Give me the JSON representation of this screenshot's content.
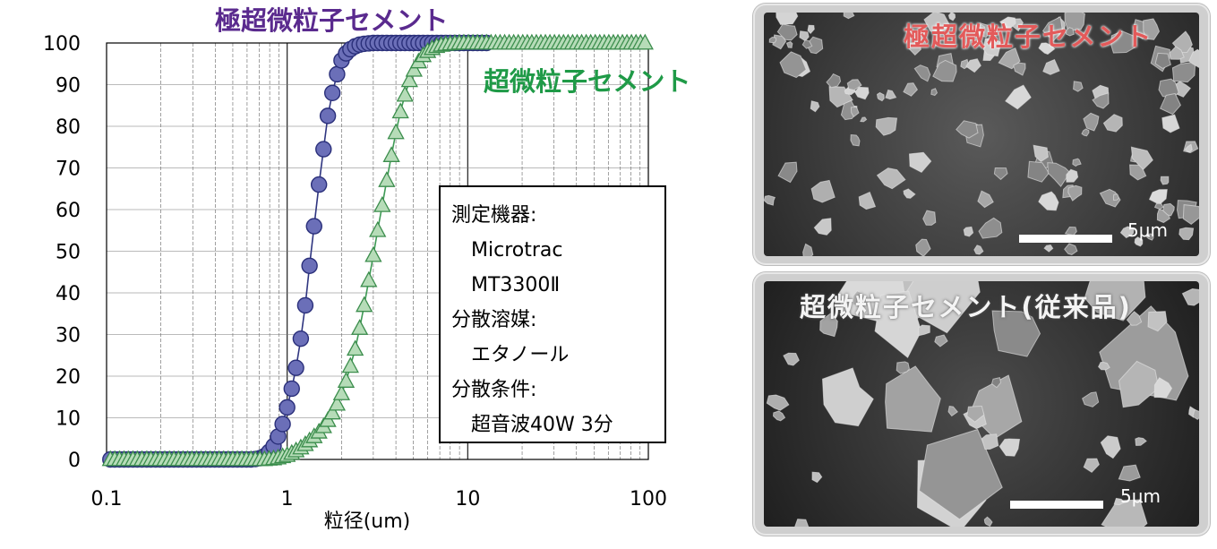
{
  "chart_data": {
    "type": "scatter",
    "xscale": "log",
    "xlim": [
      0.1,
      100
    ],
    "ylim": [
      0,
      100
    ],
    "xlabel": "粒径(um)",
    "ylabel": "",
    "grid": true,
    "x_ticks": [
      "0.1",
      "1",
      "10",
      "100"
    ],
    "y_ticks": [
      "0",
      "10",
      "20",
      "30",
      "40",
      "50",
      "60",
      "70",
      "80",
      "90",
      "100"
    ],
    "series": [
      {
        "name": "極超微粒子セメント",
        "marker": "circle",
        "color": "#6b6fb8",
        "x": [
          0.105,
          0.111,
          0.118,
          0.125,
          0.132,
          0.14,
          0.148,
          0.157,
          0.167,
          0.176,
          0.187,
          0.198,
          0.21,
          0.223,
          0.236,
          0.25,
          0.265,
          0.281,
          0.297,
          0.315,
          0.334,
          0.354,
          0.375,
          0.397,
          0.42,
          0.445,
          0.472,
          0.5,
          0.53,
          0.561,
          0.595,
          0.63,
          0.667,
          0.707,
          0.749,
          0.794,
          0.841,
          0.891,
          0.944,
          1.0,
          1.06,
          1.12,
          1.19,
          1.26,
          1.33,
          1.41,
          1.5,
          1.59,
          1.68,
          1.78,
          1.89,
          2.0,
          2.12,
          2.24,
          2.38,
          2.52,
          2.67,
          2.83,
          3.0,
          3.17,
          3.36,
          3.56,
          3.78,
          4.0,
          4.24,
          4.49,
          4.76,
          5.04,
          5.34,
          5.66,
          6.0,
          6.35,
          6.73,
          7.13,
          7.55,
          8.0,
          8.48,
          8.98,
          9.51,
          10.08,
          10.68,
          11.31,
          11.98,
          12.7
        ],
        "values": [
          0,
          0,
          0,
          0,
          0,
          0,
          0,
          0,
          0,
          0,
          0,
          0,
          0,
          0,
          0,
          0,
          0,
          0,
          0,
          0,
          0,
          0,
          0,
          0,
          0,
          0,
          0,
          0,
          0,
          0,
          0,
          0,
          0.1,
          0.3,
          0.8,
          1.8,
          3.2,
          5.5,
          8.5,
          12.5,
          17,
          22,
          29,
          37,
          46.5,
          56,
          66,
          74.5,
          82.5,
          88,
          92.5,
          95.8,
          97.5,
          98.5,
          99.2,
          99.6,
          99.8,
          99.9,
          100,
          100,
          100,
          100,
          100,
          100,
          100,
          100,
          100,
          100,
          100,
          100,
          100,
          100,
          100,
          100,
          100,
          100,
          100,
          100,
          100,
          100,
          100,
          100,
          100,
          100
        ]
      },
      {
        "name": "超微粒子セメント",
        "marker": "triangle",
        "color": "#b6dcb8",
        "x": [
          0.105,
          0.111,
          0.118,
          0.125,
          0.132,
          0.14,
          0.148,
          0.157,
          0.167,
          0.176,
          0.187,
          0.198,
          0.21,
          0.223,
          0.236,
          0.25,
          0.265,
          0.281,
          0.297,
          0.315,
          0.334,
          0.354,
          0.375,
          0.397,
          0.42,
          0.445,
          0.472,
          0.5,
          0.53,
          0.561,
          0.595,
          0.63,
          0.667,
          0.707,
          0.749,
          0.794,
          0.841,
          0.891,
          0.944,
          1.0,
          1.06,
          1.12,
          1.19,
          1.26,
          1.33,
          1.41,
          1.5,
          1.59,
          1.68,
          1.78,
          1.89,
          2.0,
          2.12,
          2.24,
          2.38,
          2.52,
          2.67,
          2.83,
          3.0,
          3.17,
          3.36,
          3.56,
          3.78,
          4.0,
          4.24,
          4.49,
          4.76,
          5.04,
          5.34,
          5.66,
          6.0,
          6.35,
          6.73,
          7.13,
          7.55,
          8.0,
          8.48,
          8.98,
          9.51,
          10.08,
          10.68,
          11.31,
          11.98,
          12.7,
          13.45,
          14.25,
          15.1,
          16.0,
          16.95,
          17.96,
          19.03,
          20.16,
          21.36,
          22.63,
          23.97,
          25.4,
          26.91,
          28.51,
          30.2,
          32.0,
          33.9,
          35.92,
          38.05,
          40.32,
          42.71,
          45.25,
          47.94,
          50.8,
          53.81,
          57.01,
          60.4,
          63.99,
          67.8,
          71.83,
          76.1,
          80.62,
          85.42,
          90.5,
          95.88
        ],
        "values": [
          0,
          0,
          0,
          0,
          0,
          0,
          0,
          0,
          0,
          0,
          0,
          0,
          0,
          0,
          0,
          0,
          0,
          0,
          0,
          0,
          0,
          0,
          0,
          0,
          0,
          0,
          0,
          0,
          0,
          0,
          0,
          0,
          0,
          0,
          0,
          0.1,
          0.2,
          0.4,
          0.7,
          1.0,
          1.5,
          2.1,
          2.8,
          3.6,
          4.5,
          5.5,
          6.6,
          7.9,
          9.4,
          11.2,
          13.3,
          15.8,
          18.8,
          22.4,
          26.5,
          31.5,
          37,
          43,
          49,
          55,
          61,
          67,
          73,
          78.5,
          83.5,
          87.5,
          91,
          93.5,
          95.5,
          97,
          98,
          98.7,
          99.2,
          99.5,
          99.7,
          99.8,
          99.9,
          100,
          100,
          100,
          100,
          100,
          100,
          100,
          100,
          100,
          100,
          100,
          100,
          100,
          100,
          100,
          100,
          100,
          100,
          100,
          100,
          100,
          100,
          100,
          100,
          100,
          100,
          100,
          100,
          100,
          100,
          100,
          100,
          100,
          100,
          100,
          100,
          100,
          100,
          100,
          100,
          100,
          100
        ]
      }
    ]
  },
  "info_box": {
    "lines": [
      "測定機器:",
      "Microtrac",
      "MT3300Ⅱ",
      "分散溶媒:",
      "エタノール",
      "分散条件:",
      "超音波40W 3分"
    ]
  },
  "photos": [
    {
      "title": "極超微粒子セメント",
      "scale": "5μm"
    },
    {
      "title": "超微粒子セメント(従来品)",
      "scale": "5μm"
    }
  ]
}
